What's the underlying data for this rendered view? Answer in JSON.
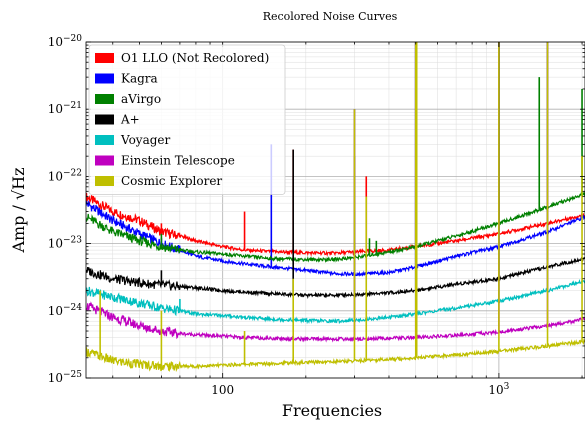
{
  "chart_data": {
    "type": "line",
    "title": "Recolored Noise Curves",
    "xlabel": "Frequencies",
    "ylabel": "Amp / √Hz",
    "xscale": "log",
    "yscale": "log",
    "xlim": [
      32,
      2050
    ],
    "ylim": [
      1e-25,
      1e-20
    ],
    "grid": true,
    "legend": {
      "placement": "top-left"
    },
    "x_ticks": [
      {
        "value": 100,
        "label": "100"
      },
      {
        "value": 1000,
        "label": "10",
        "exp": "3"
      }
    ],
    "y_ticks": [
      {
        "value": 1e-25,
        "label": "10",
        "exp": "−25"
      },
      {
        "value": 1e-24,
        "label": "10",
        "exp": "−24"
      },
      {
        "value": 1e-23,
        "label": "10",
        "exp": "−23"
      },
      {
        "value": 1e-22,
        "label": "10",
        "exp": "−22"
      },
      {
        "value": 1e-21,
        "label": "10",
        "exp": "−21"
      },
      {
        "value": 1e-20,
        "label": "10",
        "exp": "−20"
      }
    ],
    "series": [
      {
        "name": "O1 LLO (Not Recolored)",
        "color": "#ff0000",
        "x": [
          32,
          40,
          50,
          60,
          70,
          80,
          100,
          120,
          150,
          200,
          250,
          300,
          400,
          500,
          700,
          1000,
          1500,
          2048
        ],
        "y": [
          5e-23,
          3e-23,
          2.2e-23,
          1.5e-23,
          1.3e-23,
          1.1e-23,
          9e-24,
          8e-24,
          7.6e-24,
          7.3e-24,
          7.2e-24,
          7.5e-24,
          8e-24,
          9e-24,
          1.1e-23,
          1.4e-23,
          2e-23,
          2.7e-23
        ],
        "peaks": [
          [
            60,
            2e-23
          ],
          [
            120,
            3e-23
          ],
          [
            180,
            2.5e-22
          ],
          [
            300,
            2e-22
          ],
          [
            331,
            1e-22
          ],
          [
            500,
            1e-20
          ],
          [
            504,
            1e-20
          ],
          [
            1000,
            1e-20
          ],
          [
            1500,
            1e-20
          ]
        ]
      },
      {
        "name": "Kagra",
        "color": "#0000ff",
        "x": [
          32,
          40,
          50,
          60,
          70,
          80,
          100,
          120,
          150,
          200,
          250,
          300,
          400,
          500,
          700,
          1000,
          1500,
          2048
        ],
        "y": [
          4e-23,
          2.2e-23,
          1.4e-23,
          1e-23,
          8e-24,
          6.5e-24,
          5.5e-24,
          5e-24,
          4.5e-24,
          4e-24,
          3.6e-24,
          3.5e-24,
          3.7e-24,
          4.5e-24,
          6.5e-24,
          9e-24,
          1.5e-23,
          2.5e-23
        ],
        "peaks": [
          [
            60,
            1.2e-23
          ],
          [
            150,
            3e-22
          ],
          [
            300,
            3e-23
          ],
          [
            500,
            1e-20
          ],
          [
            1000,
            1e-20
          ]
        ]
      },
      {
        "name": "aVirgo",
        "color": "#008000",
        "x": [
          32,
          40,
          50,
          60,
          70,
          80,
          100,
          120,
          150,
          200,
          250,
          300,
          400,
          500,
          700,
          1000,
          1500,
          2048
        ],
        "y": [
          2.5e-23,
          1.5e-23,
          1.1e-23,
          9e-24,
          8e-24,
          7.5e-24,
          7e-24,
          6.5e-24,
          6e-24,
          5.8e-24,
          5.8e-24,
          6.2e-24,
          7.5e-24,
          9e-24,
          1.3e-23,
          2e-23,
          3.5e-23,
          5.5e-23
        ],
        "peaks": [
          [
            60,
            1.4e-23
          ],
          [
            340,
            1.2e-23
          ],
          [
            360,
            1.1e-23
          ],
          [
            1000,
            1e-20
          ],
          [
            1400,
            3e-21
          ],
          [
            2000,
            2e-21
          ]
        ]
      },
      {
        "name": "A+",
        "color": "#000000",
        "x": [
          32,
          40,
          50,
          60,
          70,
          80,
          100,
          120,
          150,
          200,
          250,
          300,
          400,
          500,
          700,
          1000,
          1500,
          2048
        ],
        "y": [
          4e-24,
          3e-24,
          2.6e-24,
          2.4e-24,
          2.3e-24,
          2.2e-24,
          2e-24,
          1.9e-24,
          1.8e-24,
          1.7e-24,
          1.7e-24,
          1.75e-24,
          1.85e-24,
          2e-24,
          2.5e-24,
          3e-24,
          4.5e-24,
          6e-24
        ],
        "peaks": [
          [
            60,
            4e-24
          ],
          [
            180,
            2.5e-22
          ],
          [
            300,
            2e-22
          ],
          [
            500,
            1e-20
          ],
          [
            1000,
            1e-20
          ],
          [
            1500,
            1e-20
          ]
        ]
      },
      {
        "name": "Voyager",
        "color": "#00bfbf",
        "x": [
          32,
          40,
          50,
          60,
          70,
          80,
          100,
          120,
          150,
          200,
          250,
          300,
          400,
          500,
          700,
          1000,
          1500,
          2048
        ],
        "y": [
          2e-24,
          1.6e-24,
          1.3e-24,
          1.1e-24,
          1e-24,
          9e-25,
          8.5e-25,
          8e-25,
          7.5e-25,
          7.2e-25,
          7e-25,
          7.2e-25,
          8e-25,
          9e-25,
          1.1e-24,
          1.4e-24,
          2e-24,
          2.8e-24
        ],
        "peaks": [
          [
            70,
            1.5e-24
          ],
          [
            300,
            1e-21
          ],
          [
            500,
            1e-20
          ],
          [
            1000,
            1e-20
          ],
          [
            1500,
            1e-20
          ]
        ]
      },
      {
        "name": "Einstein Telescope",
        "color": "#bf00bf",
        "x": [
          32,
          40,
          50,
          60,
          70,
          80,
          100,
          120,
          150,
          200,
          250,
          300,
          400,
          500,
          700,
          1000,
          1500,
          2048
        ],
        "y": [
          1.2e-24,
          8e-25,
          6e-25,
          5e-25,
          4.6e-25,
          4.4e-25,
          4.2e-25,
          4e-25,
          3.9e-25,
          3.8e-25,
          3.8e-25,
          3.8e-25,
          3.9e-25,
          4e-25,
          4.3e-25,
          4.8e-25,
          6e-25,
          7.5e-25
        ],
        "peaks": [
          [
            300,
            1e-21
          ],
          [
            500,
            1e-20
          ],
          [
            1000,
            1e-20
          ],
          [
            1500,
            1e-20
          ]
        ]
      },
      {
        "name": "Cosmic Explorer",
        "color": "#bfbf00",
        "x": [
          32,
          40,
          50,
          60,
          70,
          80,
          100,
          120,
          150,
          200,
          250,
          300,
          400,
          500,
          700,
          1000,
          1500,
          2048
        ],
        "y": [
          2.5e-25,
          1.8e-25,
          1.6e-25,
          1.5e-25,
          1.5e-25,
          1.5e-25,
          1.55e-25,
          1.6e-25,
          1.65e-25,
          1.7e-25,
          1.75e-25,
          1.8e-25,
          1.9e-25,
          2e-25,
          2.2e-25,
          2.5e-25,
          3e-25,
          3.5e-25
        ],
        "peaks": [
          [
            36,
            2e-24
          ],
          [
            60,
            1e-24
          ],
          [
            120,
            5e-25
          ],
          [
            180,
            3e-24
          ],
          [
            300,
            1e-21
          ],
          [
            331,
            5e-23
          ],
          [
            500,
            1e-20
          ],
          [
            504,
            1e-20
          ],
          [
            1000,
            1e-20
          ],
          [
            1500,
            1e-20
          ],
          [
            2000,
            2e-22
          ]
        ]
      }
    ]
  }
}
